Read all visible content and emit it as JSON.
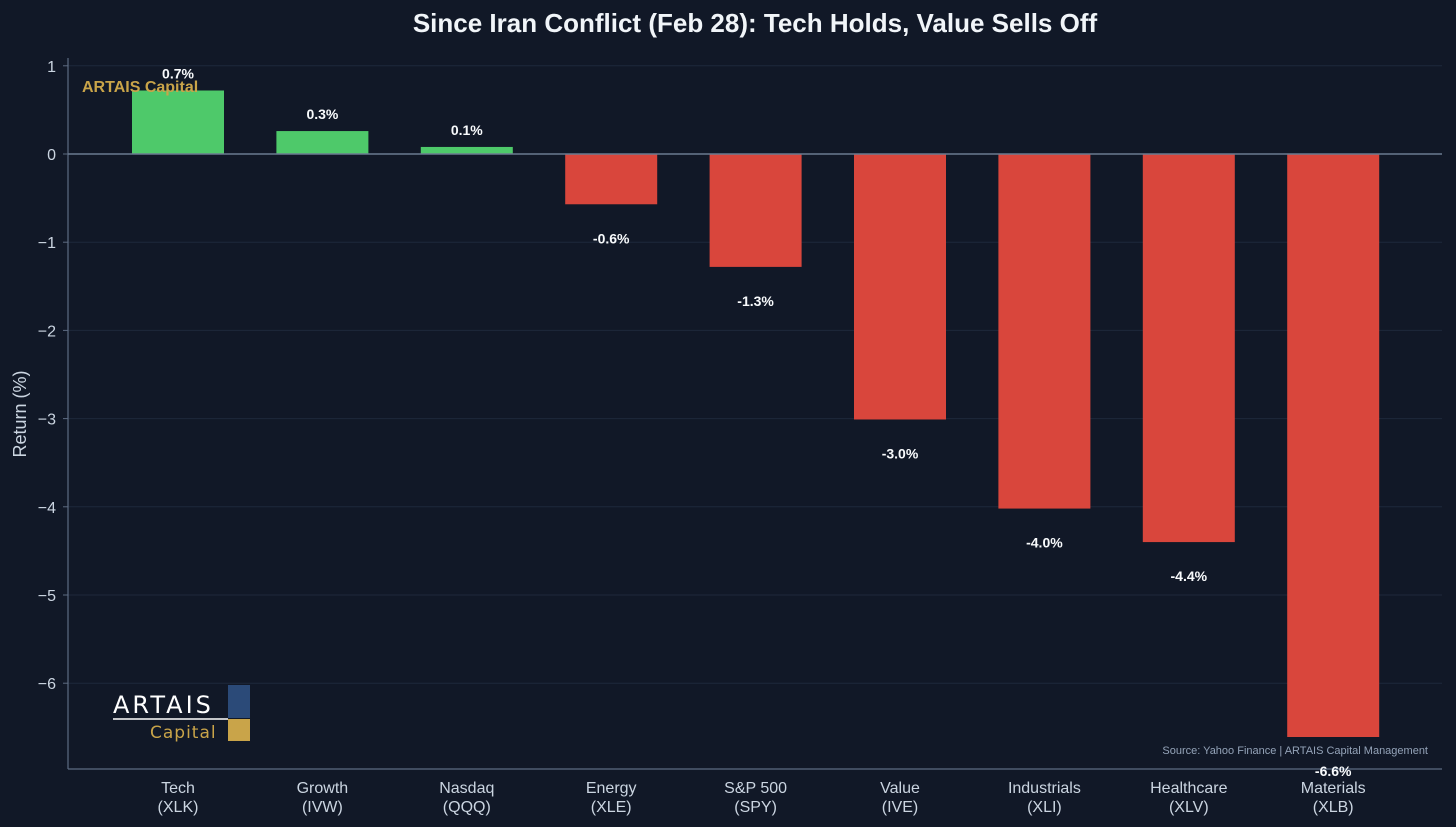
{
  "chart_data": {
    "type": "bar",
    "title": "Since Iran Conflict (Feb 28): Tech Holds, Value Sells Off",
    "xlabel": "",
    "ylabel": "Return (%)",
    "ylim": [
      -7,
      1
    ],
    "yticks": [
      1,
      0,
      -1,
      -2,
      -3,
      -4,
      -5,
      -6
    ],
    "ytick_labels": [
      "1",
      "0",
      "−1",
      "−2",
      "−3",
      "−4",
      "−5",
      "−6"
    ],
    "categories": [
      {
        "name": "Tech",
        "ticker": "(XLK)"
      },
      {
        "name": "Growth",
        "ticker": "(IVW)"
      },
      {
        "name": "Nasdaq",
        "ticker": "(QQQ)"
      },
      {
        "name": "Energy",
        "ticker": "(XLE)"
      },
      {
        "name": "S&P 500",
        "ticker": "(SPY)"
      },
      {
        "name": "Value",
        "ticker": "(IVE)"
      },
      {
        "name": "Industrials",
        "ticker": "(XLI)"
      },
      {
        "name": "Healthcare",
        "ticker": "(XLV)"
      },
      {
        "name": "Materials",
        "ticker": "(XLB)"
      }
    ],
    "values": [
      0.72,
      0.26,
      0.08,
      -0.57,
      -1.28,
      -3.01,
      -4.02,
      -4.4,
      -6.61
    ],
    "value_labels": [
      "0.7%",
      "0.3%",
      "0.1%",
      "-0.6%",
      "-1.3%",
      "-3.0%",
      "-4.0%",
      "-4.4%",
      "-6.6%"
    ],
    "colors": {
      "positive": "#4ec96a",
      "negative": "#d9463c"
    },
    "grid": true,
    "legend": "none"
  },
  "watermark": "ARTAIS Capital",
  "source": "Source: Yahoo Finance | ARTAIS Capital Management",
  "logo": {
    "main": "ARTAIS",
    "sub": "Capital"
  },
  "colors": {
    "background": "#111827",
    "axis": "#5d6b82",
    "grid": "#1e293b",
    "zero_line": "#6b7a90",
    "gold": "#c9a449",
    "navy": "#2b4a78"
  }
}
